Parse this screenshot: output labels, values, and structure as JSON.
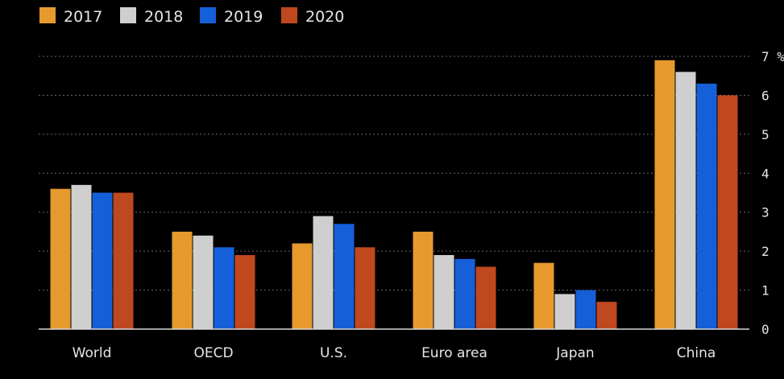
{
  "chart_data": {
    "type": "bar",
    "title": "",
    "xlabel": "",
    "ylabel": "",
    "y_unit": "%",
    "ylim": [
      0,
      7
    ],
    "yticks": [
      0,
      1,
      2,
      3,
      4,
      5,
      6,
      7
    ],
    "grid": true,
    "legend_position": "top-left",
    "categories": [
      "World",
      "OECD",
      "U.S.",
      "Euro area",
      "Japan",
      "China"
    ],
    "series": [
      {
        "name": "2017",
        "color": "#E69A2E",
        "values": [
          3.6,
          2.5,
          2.2,
          2.5,
          1.7,
          6.9
        ]
      },
      {
        "name": "2018",
        "color": "#CFCFCF",
        "values": [
          3.7,
          2.4,
          2.9,
          1.9,
          0.9,
          6.6
        ]
      },
      {
        "name": "2019",
        "color": "#1560D9",
        "values": [
          3.5,
          2.1,
          2.7,
          1.8,
          1.0,
          6.3
        ]
      },
      {
        "name": "2020",
        "color": "#C0481F",
        "values": [
          3.5,
          1.9,
          2.1,
          1.6,
          0.7,
          6.0
        ]
      }
    ]
  }
}
